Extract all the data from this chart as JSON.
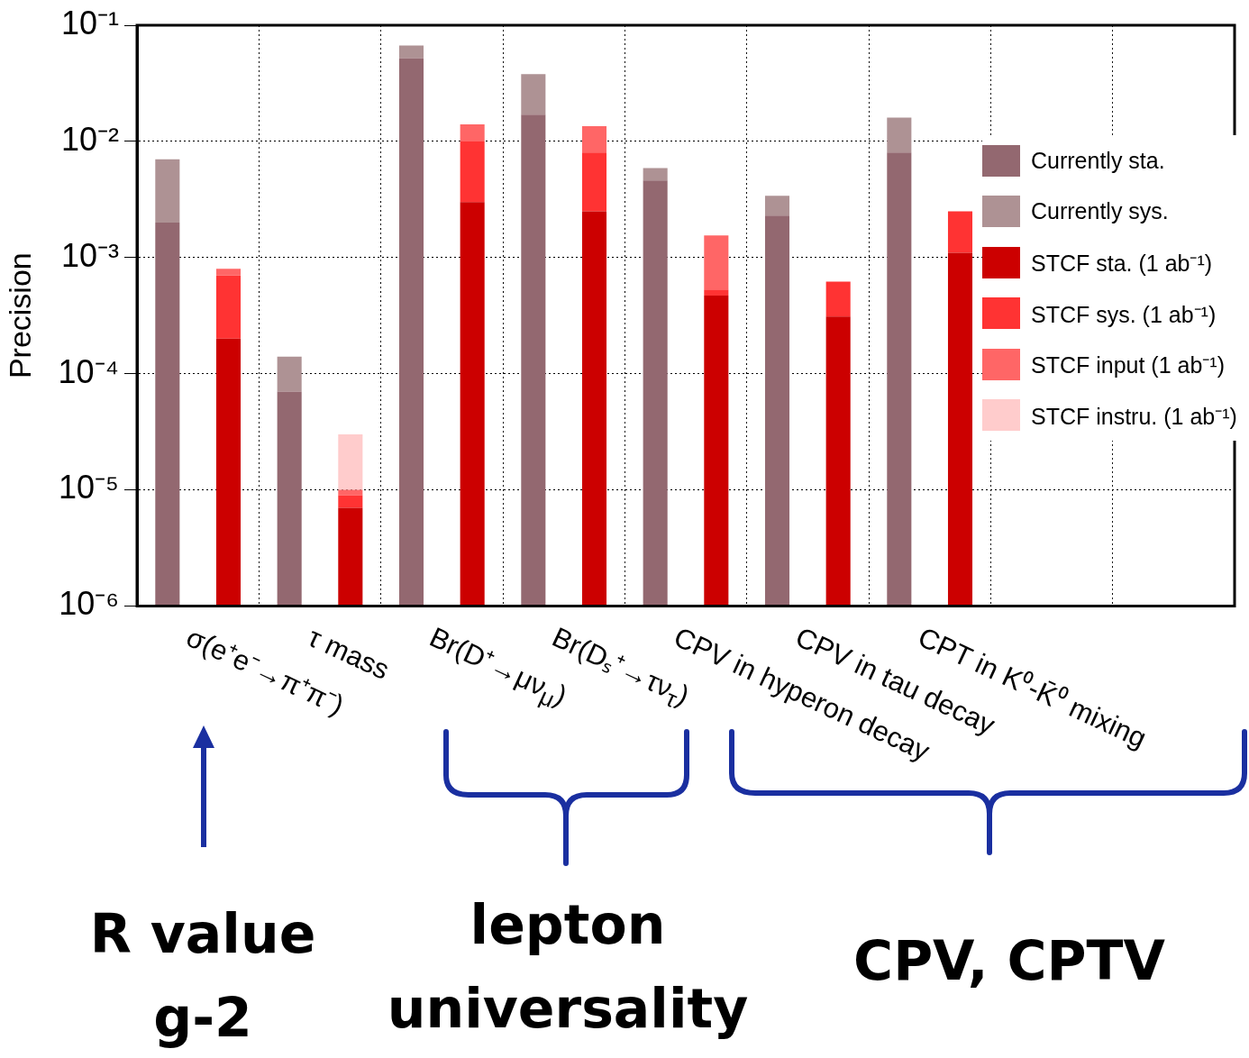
{
  "chart_data": {
    "type": "bar",
    "stacked": true,
    "log": "y",
    "ylabel": "Precision",
    "categories": [
      "σ(e⁺e⁻→π⁺π⁻)",
      null,
      "τ mass",
      null,
      "Br(D⁺→μν$_{μ}$)",
      null,
      "Br(Dₛ⁺→τν$_{τ}$)",
      null,
      "CPV in hyperon decay",
      null,
      "CPV in tau decay",
      null,
      "CPT in K⁰-K̄⁰ mixing",
      null,
      null,
      null,
      null,
      null
    ],
    "series": [
      {
        "name": "Currently sta.",
        "color": "#936870",
        "values": [
          0.002,
          null,
          7e-05,
          null,
          0.052,
          null,
          0.017,
          null,
          0.0046,
          null,
          0.0023,
          null,
          0.008,
          null,
          null,
          null,
          null,
          null
        ]
      },
      {
        "name": "Currently sys.",
        "color": "#ae9294",
        "values": [
          0.005,
          null,
          7e-05,
          null,
          0.015,
          null,
          0.021,
          null,
          0.0013,
          null,
          0.0011,
          null,
          0.008,
          null,
          null,
          null,
          null,
          null
        ]
      },
      {
        "name": "STCF sta. (1 ab⁻¹)",
        "color": "#cc0000",
        "values": [
          null,
          0.0002,
          null,
          7e-06,
          null,
          0.003,
          null,
          0.0025,
          null,
          0.00047,
          null,
          0.00031,
          null,
          0.0011,
          null,
          null,
          null,
          null
        ]
      },
      {
        "name": "STCF sys. (1 ab⁻¹)",
        "color": "#ff3333",
        "values": [
          null,
          0.0005,
          null,
          2e-06,
          null,
          0.007,
          null,
          0.0055,
          null,
          6e-05,
          null,
          0.00031,
          null,
          0.0014,
          null,
          null,
          null,
          null
        ]
      },
      {
        "name": "STCF input (1 ab⁻¹)",
        "color": "#ff6666",
        "values": [
          null,
          0.0001,
          null,
          1e-06,
          null,
          0.004,
          null,
          0.0055,
          null,
          0.00102,
          null,
          null,
          null,
          null,
          null,
          null,
          null,
          null
        ]
      },
      {
        "name": "STCF instru. (1 ab⁻¹)",
        "color": "#ffcccc",
        "values": [
          null,
          null,
          null,
          2e-05,
          null,
          null,
          null,
          null,
          null,
          null,
          null,
          null,
          null,
          null,
          null,
          null,
          null,
          null
        ]
      }
    ],
    "ylim": [
      1e-06,
      0.1
    ],
    "yticks": [
      {
        "value": 1e-06,
        "label": "10⁻⁶"
      },
      {
        "value": 1e-05,
        "label": "10⁻⁵"
      },
      {
        "value": 0.0001,
        "label": "10⁻⁴"
      },
      {
        "value": 0.001,
        "label": "10⁻³"
      },
      {
        "value": 0.01,
        "label": "10⁻²"
      },
      {
        "value": 0.1,
        "label": "10⁻¹"
      }
    ],
    "grid": true,
    "legend": "right",
    "annotations": [
      "R value\ng-2",
      "lepton\nuniversality",
      "CPV, CPTV"
    ]
  }
}
